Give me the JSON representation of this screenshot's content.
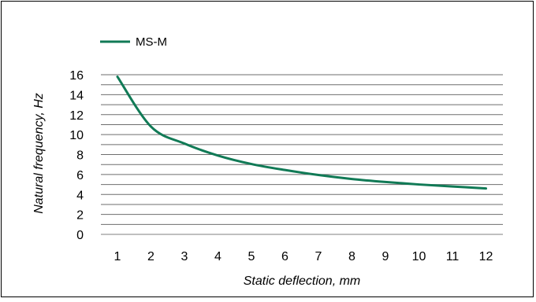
{
  "chart_data": {
    "type": "line",
    "title": "",
    "xlabel": "Static deflection, mm",
    "ylabel": "Natural frequency, Hz",
    "xlim": [
      1,
      12
    ],
    "ylim": [
      0,
      16
    ],
    "x_ticks": [
      "1",
      "2",
      "3",
      "4",
      "5",
      "6",
      "7",
      "8",
      "9",
      "10",
      "11",
      "12"
    ],
    "y_ticks": [
      "0",
      "2",
      "4",
      "6",
      "8",
      "10",
      "12",
      "14",
      "16"
    ],
    "y_tick_values": [
      0,
      2,
      4,
      6,
      8,
      10,
      12,
      14,
      16
    ],
    "y_grid_step": 1,
    "grid": true,
    "legend_position": "top-left",
    "x": [
      1,
      2,
      3,
      4,
      5,
      6,
      7,
      8,
      9,
      10,
      11,
      12
    ],
    "series": [
      {
        "name": "MS-M",
        "color": "#117a56",
        "values": [
          15.8,
          10.8,
          9.1,
          7.9,
          7.05,
          6.45,
          5.95,
          5.55,
          5.25,
          5.0,
          4.8,
          4.6
        ]
      }
    ]
  }
}
